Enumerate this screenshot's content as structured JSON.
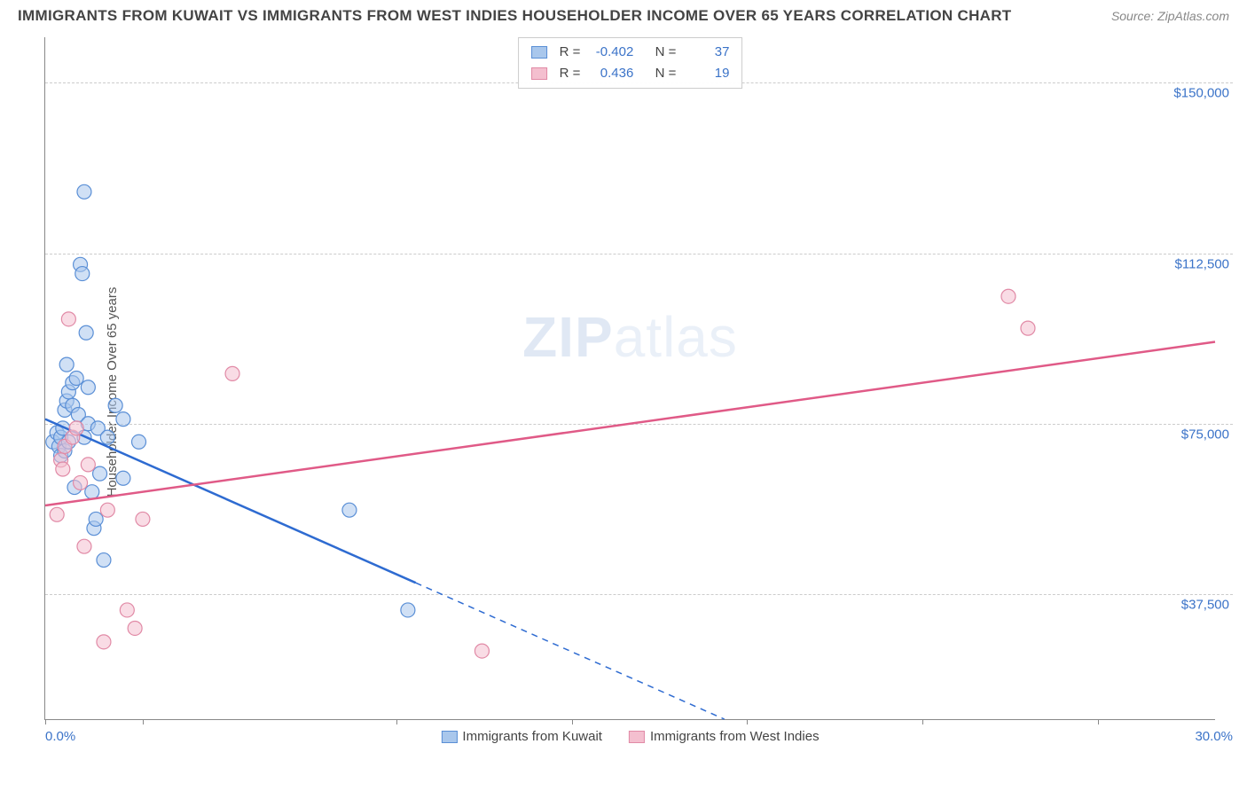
{
  "header": {
    "title": "IMMIGRANTS FROM KUWAIT VS IMMIGRANTS FROM WEST INDIES HOUSEHOLDER INCOME OVER 65 YEARS CORRELATION CHART",
    "source": "Source: ZipAtlas.com"
  },
  "ylabel": "Householder Income Over 65 years",
  "watermark_a": "ZIP",
  "watermark_b": "atlas",
  "chart": {
    "type": "scatter",
    "xlim": [
      0,
      30
    ],
    "ylim": [
      10000,
      160000
    ],
    "x_tick_positions": [
      0,
      2.5,
      9,
      13.5,
      18,
      22.5,
      27
    ],
    "x_min_label": "0.0%",
    "x_max_label": "30.0%",
    "y_ticks": [
      {
        "v": 37500,
        "label": "$37,500"
      },
      {
        "v": 75000,
        "label": "$75,000"
      },
      {
        "v": 112500,
        "label": "$112,500"
      },
      {
        "v": 150000,
        "label": "$150,000"
      }
    ],
    "grid_color": "#cccccc",
    "background": "#ffffff",
    "marker_radius": 8,
    "marker_opacity": 0.55,
    "series": [
      {
        "key": "kuwait",
        "label": "Immigrants from Kuwait",
        "fill": "#a9c7ec",
        "stroke": "#5a8fd6",
        "line_color": "#2e6bd1",
        "R": "-0.402",
        "N": "37",
        "regression": {
          "x1": 0,
          "y1": 76000,
          "x2_solid": 9.5,
          "y2_solid": 40000,
          "x2": 20.5,
          "y2": 0
        },
        "points": [
          {
            "x": 0.2,
            "y": 71000
          },
          {
            "x": 0.3,
            "y": 73000
          },
          {
            "x": 0.35,
            "y": 70000
          },
          {
            "x": 0.4,
            "y": 72000
          },
          {
            "x": 0.4,
            "y": 68000
          },
          {
            "x": 0.45,
            "y": 74000
          },
          {
            "x": 0.5,
            "y": 69000
          },
          {
            "x": 0.5,
            "y": 78000
          },
          {
            "x": 0.55,
            "y": 80000
          },
          {
            "x": 0.6,
            "y": 71000
          },
          {
            "x": 0.6,
            "y": 82000
          },
          {
            "x": 0.7,
            "y": 79000
          },
          {
            "x": 0.7,
            "y": 84000
          },
          {
            "x": 0.75,
            "y": 61000
          },
          {
            "x": 0.8,
            "y": 85000
          },
          {
            "x": 0.85,
            "y": 77000
          },
          {
            "x": 0.9,
            "y": 110000
          },
          {
            "x": 0.95,
            "y": 108000
          },
          {
            "x": 1.0,
            "y": 126000
          },
          {
            "x": 1.0,
            "y": 72000
          },
          {
            "x": 1.05,
            "y": 95000
          },
          {
            "x": 1.1,
            "y": 83000
          },
          {
            "x": 1.1,
            "y": 75000
          },
          {
            "x": 1.2,
            "y": 60000
          },
          {
            "x": 1.25,
            "y": 52000
          },
          {
            "x": 1.3,
            "y": 54000
          },
          {
            "x": 1.35,
            "y": 74000
          },
          {
            "x": 1.4,
            "y": 64000
          },
          {
            "x": 1.5,
            "y": 45000
          },
          {
            "x": 1.6,
            "y": 72000
          },
          {
            "x": 1.8,
            "y": 79000
          },
          {
            "x": 2.0,
            "y": 76000
          },
          {
            "x": 2.0,
            "y": 63000
          },
          {
            "x": 2.4,
            "y": 71000
          },
          {
            "x": 7.8,
            "y": 56000
          },
          {
            "x": 9.3,
            "y": 34000
          },
          {
            "x": 0.55,
            "y": 88000
          }
        ]
      },
      {
        "key": "westindies",
        "label": "Immigrants from West Indies",
        "fill": "#f4bfcf",
        "stroke": "#e18aa6",
        "line_color": "#e05a87",
        "R": "0.436",
        "N": "19",
        "regression": {
          "x1": 0,
          "y1": 57000,
          "x2_solid": 30,
          "y2_solid": 93000,
          "x2": 30,
          "y2": 93000
        },
        "points": [
          {
            "x": 0.3,
            "y": 55000
          },
          {
            "x": 0.4,
            "y": 67000
          },
          {
            "x": 0.45,
            "y": 65000
          },
          {
            "x": 0.5,
            "y": 70000
          },
          {
            "x": 0.6,
            "y": 98000
          },
          {
            "x": 0.7,
            "y": 72000
          },
          {
            "x": 0.8,
            "y": 74000
          },
          {
            "x": 0.9,
            "y": 62000
          },
          {
            "x": 1.0,
            "y": 48000
          },
          {
            "x": 1.1,
            "y": 66000
          },
          {
            "x": 1.5,
            "y": 27000
          },
          {
            "x": 1.6,
            "y": 56000
          },
          {
            "x": 2.1,
            "y": 34000
          },
          {
            "x": 2.3,
            "y": 30000
          },
          {
            "x": 2.5,
            "y": 54000
          },
          {
            "x": 4.8,
            "y": 86000
          },
          {
            "x": 11.2,
            "y": 25000
          },
          {
            "x": 24.7,
            "y": 103000
          },
          {
            "x": 25.2,
            "y": 96000
          }
        ]
      }
    ]
  },
  "labels": {
    "R": "R =",
    "N": "N ="
  }
}
